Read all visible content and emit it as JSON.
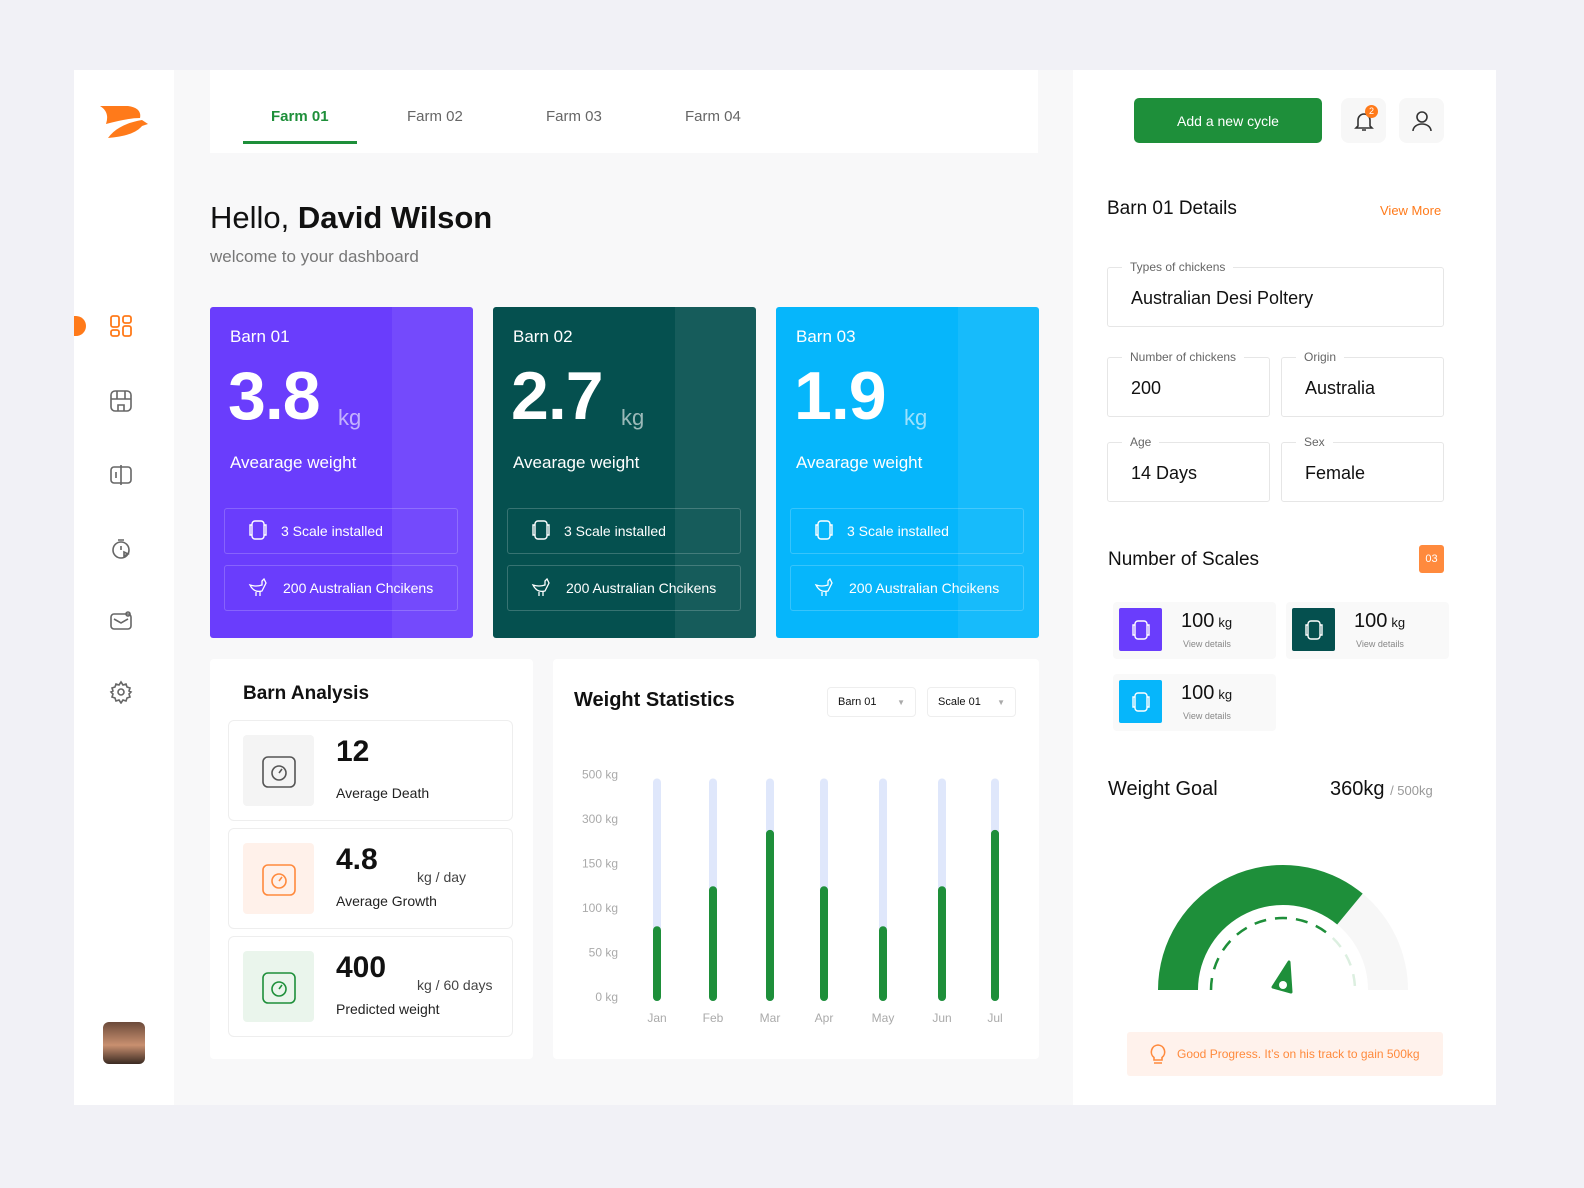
{
  "colors": {
    "accent": "#1e8f3a",
    "brand": "#ff7a1a",
    "barn1": "#6a3dfc",
    "barn2": "#05504f",
    "barn3": "#06b6fb"
  },
  "sidebar": {
    "items": [
      {
        "icon": "dashboard-icon",
        "active": true
      },
      {
        "icon": "store-icon"
      },
      {
        "icon": "scale-icon"
      },
      {
        "icon": "timer-icon"
      },
      {
        "icon": "mail-icon"
      },
      {
        "icon": "settings-icon"
      }
    ]
  },
  "tabs": [
    {
      "label": "Farm 01",
      "active": true
    },
    {
      "label": "Farm 02"
    },
    {
      "label": "Farm 03"
    },
    {
      "label": "Farm 04"
    }
  ],
  "greeting": {
    "hello": "Hello,",
    "name": "David Wilson",
    "subtitle": "welcome to your dashboard"
  },
  "barns": [
    {
      "name": "Barn 01",
      "weight": "3.8",
      "unit": "kg",
      "label": "Avearage weight",
      "scales": "3 Scale installed",
      "chickens": "200 Australian Chcikens",
      "color": "#6a3dfc"
    },
    {
      "name": "Barn 02",
      "weight": "2.7",
      "unit": "kg",
      "label": "Avearage weight",
      "scales": "3 Scale installed",
      "chickens": "200 Australian Chcikens",
      "color": "#05504f"
    },
    {
      "name": "Barn 03",
      "weight": "1.9",
      "unit": "kg",
      "label": "Avearage weight",
      "scales": "3 Scale installed",
      "chickens": "200 Australian Chcikens",
      "color": "#06b6fb"
    }
  ],
  "analysis": {
    "title": "Barn Analysis",
    "rows": [
      {
        "value": "12",
        "unit": "",
        "label": "Average Death",
        "icon": "chicken-icon"
      },
      {
        "value": "4.8",
        "unit": "kg / day",
        "label": "Average Growth",
        "icon": "weighing-scale-icon"
      },
      {
        "value": "400",
        "unit": "kg / 60 days",
        "label": "Predicted weight",
        "icon": "digital-scale-icon"
      }
    ]
  },
  "stats": {
    "title": "Weight Statistics",
    "barn_select": "Barn 01",
    "scale_select": "Scale 01"
  },
  "chart_data": {
    "type": "bar",
    "categories": [
      "Jan",
      "Feb",
      "Mar",
      "Apr",
      "May",
      "Jun",
      "Jul"
    ],
    "values": [
      75,
      120,
      250,
      120,
      75,
      120,
      250
    ],
    "yticks": [
      "0 kg",
      "50 kg",
      "100 kg",
      "150 kg",
      "300 kg",
      "500 kg"
    ],
    "ytick_values": [
      0,
      50,
      100,
      150,
      300,
      500
    ],
    "ylim": [
      0,
      500
    ],
    "grid": false,
    "color": "#1e8f3a",
    "track_color": "#dfe7fb"
  },
  "header": {
    "add_cycle": "Add a new cycle",
    "notif_count": "2"
  },
  "details": {
    "title": "Barn 01 Details",
    "view_more": "View More",
    "types_label": "Types of chickens",
    "types": "Australian Desi Poltery",
    "count_label": "Number of chickens",
    "count": "200",
    "origin_label": "Origin",
    "origin": "Australia",
    "age_label": "Age",
    "age": "14 Days",
    "sex_label": "Sex",
    "sex": "Female"
  },
  "scales": {
    "title": "Number of Scales",
    "count": "03",
    "items": [
      {
        "value": "100",
        "unit": "kg",
        "link": "View details",
        "color": "#6a3dfc"
      },
      {
        "value": "100",
        "unit": "kg",
        "link": "View details",
        "color": "#05504f"
      },
      {
        "value": "100",
        "unit": "kg",
        "link": "View details",
        "color": "#06b6fb"
      }
    ]
  },
  "goal": {
    "title": "Weight Goal",
    "current": "360kg",
    "target": "/ 500kg",
    "progress": 0.72,
    "message": "Good Progress. It’s on his track to gain 500kg"
  }
}
